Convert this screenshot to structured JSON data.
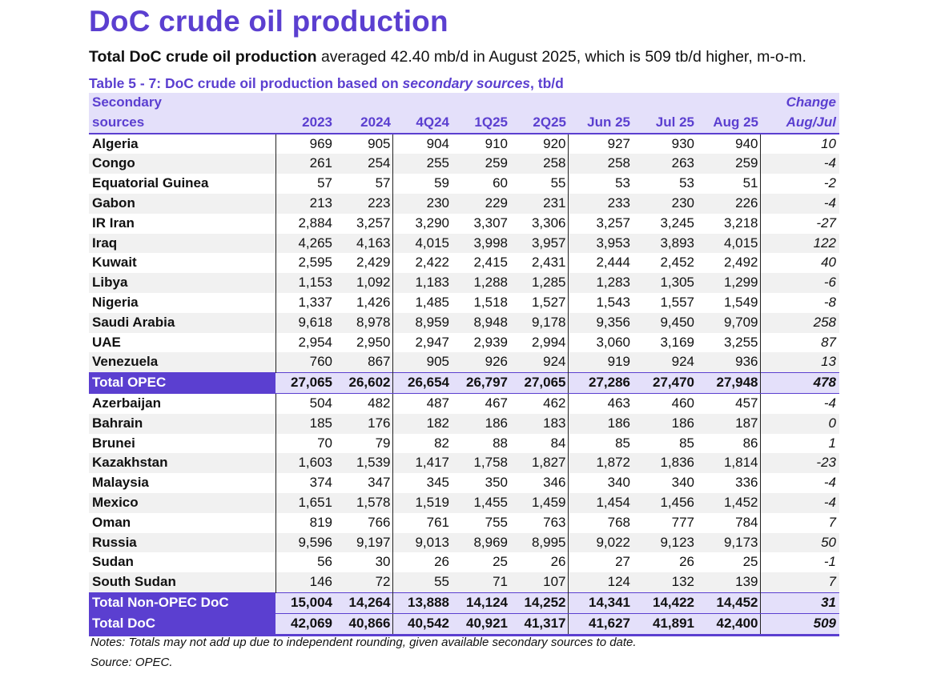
{
  "title": "DoC crude oil production",
  "subtitle": {
    "bold": "Total DoC crude oil production",
    "rest": " averaged 42.40 mb/d in August 2025, which is 509 tb/d higher, m-o-m."
  },
  "caption": {
    "part1": "Table 5 - 7: DoC crude oil production based on ",
    "italic": "secondary sources",
    "part2": ", tb/d"
  },
  "table": {
    "header_row1": {
      "name": "Secondary",
      "change": "Change"
    },
    "header_row2": {
      "name": "sources",
      "columns": [
        "2023",
        "2024",
        "4Q24",
        "1Q25",
        "2Q25",
        "Jun 25",
        "Jul 25",
        "Aug 25"
      ],
      "change": "Aug/Jul"
    },
    "rows": [
      {
        "name": "Algeria",
        "values": [
          "969",
          "905",
          "904",
          "910",
          "920",
          "927",
          "930",
          "940"
        ],
        "change": "10"
      },
      {
        "name": "Congo",
        "values": [
          "261",
          "254",
          "255",
          "259",
          "258",
          "258",
          "263",
          "259"
        ],
        "change": "-4"
      },
      {
        "name": "Equatorial Guinea",
        "values": [
          "57",
          "57",
          "59",
          "60",
          "55",
          "53",
          "53",
          "51"
        ],
        "change": "-2"
      },
      {
        "name": "Gabon",
        "values": [
          "213",
          "223",
          "230",
          "229",
          "231",
          "233",
          "230",
          "226"
        ],
        "change": "-4"
      },
      {
        "name": "IR Iran",
        "values": [
          "2,884",
          "3,257",
          "3,290",
          "3,307",
          "3,306",
          "3,257",
          "3,245",
          "3,218"
        ],
        "change": "-27"
      },
      {
        "name": "Iraq",
        "values": [
          "4,265",
          "4,163",
          "4,015",
          "3,998",
          "3,957",
          "3,953",
          "3,893",
          "4,015"
        ],
        "change": "122"
      },
      {
        "name": "Kuwait",
        "values": [
          "2,595",
          "2,429",
          "2,422",
          "2,415",
          "2,431",
          "2,444",
          "2,452",
          "2,492"
        ],
        "change": "40"
      },
      {
        "name": "Libya",
        "values": [
          "1,153",
          "1,092",
          "1,183",
          "1,288",
          "1,285",
          "1,283",
          "1,305",
          "1,299"
        ],
        "change": "-6"
      },
      {
        "name": "Nigeria",
        "values": [
          "1,337",
          "1,426",
          "1,485",
          "1,518",
          "1,527",
          "1,543",
          "1,557",
          "1,549"
        ],
        "change": "-8"
      },
      {
        "name": "Saudi Arabia",
        "values": [
          "9,618",
          "8,978",
          "8,959",
          "8,948",
          "9,178",
          "9,356",
          "9,450",
          "9,709"
        ],
        "change": "258"
      },
      {
        "name": "UAE",
        "values": [
          "2,954",
          "2,950",
          "2,947",
          "2,939",
          "2,994",
          "3,060",
          "3,169",
          "3,255"
        ],
        "change": "87"
      },
      {
        "name": "Venezuela",
        "values": [
          "760",
          "867",
          "905",
          "926",
          "924",
          "919",
          "924",
          "936"
        ],
        "change": "13"
      },
      {
        "name": "Total  OPEC",
        "values": [
          "27,065",
          "26,602",
          "26,654",
          "26,797",
          "27,065",
          "27,286",
          "27,470",
          "27,948"
        ],
        "change": "478",
        "total": true
      },
      {
        "name": "Azerbaijan",
        "values": [
          "504",
          "482",
          "487",
          "467",
          "462",
          "463",
          "460",
          "457"
        ],
        "change": "-4"
      },
      {
        "name": "Bahrain",
        "values": [
          "185",
          "176",
          "182",
          "186",
          "183",
          "186",
          "186",
          "187"
        ],
        "change": "0"
      },
      {
        "name": "Brunei",
        "values": [
          "70",
          "79",
          "82",
          "88",
          "84",
          "85",
          "85",
          "86"
        ],
        "change": "1"
      },
      {
        "name": "Kazakhstan",
        "values": [
          "1,603",
          "1,539",
          "1,417",
          "1,758",
          "1,827",
          "1,872",
          "1,836",
          "1,814"
        ],
        "change": "-23"
      },
      {
        "name": "Malaysia",
        "values": [
          "374",
          "347",
          "345",
          "350",
          "346",
          "340",
          "340",
          "336"
        ],
        "change": "-4"
      },
      {
        "name": "Mexico",
        "values": [
          "1,651",
          "1,578",
          "1,519",
          "1,455",
          "1,459",
          "1,454",
          "1,456",
          "1,452"
        ],
        "change": "-4"
      },
      {
        "name": "Oman",
        "values": [
          "819",
          "766",
          "761",
          "755",
          "763",
          "768",
          "777",
          "784"
        ],
        "change": "7"
      },
      {
        "name": "Russia",
        "values": [
          "9,596",
          "9,197",
          "9,013",
          "8,969",
          "8,995",
          "9,022",
          "9,123",
          "9,173"
        ],
        "change": "50"
      },
      {
        "name": "Sudan",
        "values": [
          "56",
          "30",
          "26",
          "25",
          "26",
          "27",
          "26",
          "25"
        ],
        "change": "-1"
      },
      {
        "name": "South Sudan",
        "values": [
          "146",
          "72",
          "55",
          "71",
          "107",
          "124",
          "132",
          "139"
        ],
        "change": "7"
      },
      {
        "name": "Total Non-OPEC DoC",
        "values": [
          "15,004",
          "14,264",
          "13,888",
          "14,124",
          "14,252",
          "14,341",
          "14,422",
          "14,452"
        ],
        "change": "31",
        "total": true
      },
      {
        "name": "Total DoC",
        "values": [
          "42,069",
          "40,866",
          "40,542",
          "40,921",
          "41,317",
          "41,627",
          "41,891",
          "42,400"
        ],
        "change": "509",
        "total": true,
        "final": true
      }
    ]
  },
  "notes": "Notes: Totals may not add up due to independent rounding, given available secondary sources to date.",
  "source": "Source: OPEC.",
  "colors": {
    "accent": "#5b3fd0",
    "header_fill": "#e4e0fa",
    "stripe": "#f1f1f1"
  }
}
